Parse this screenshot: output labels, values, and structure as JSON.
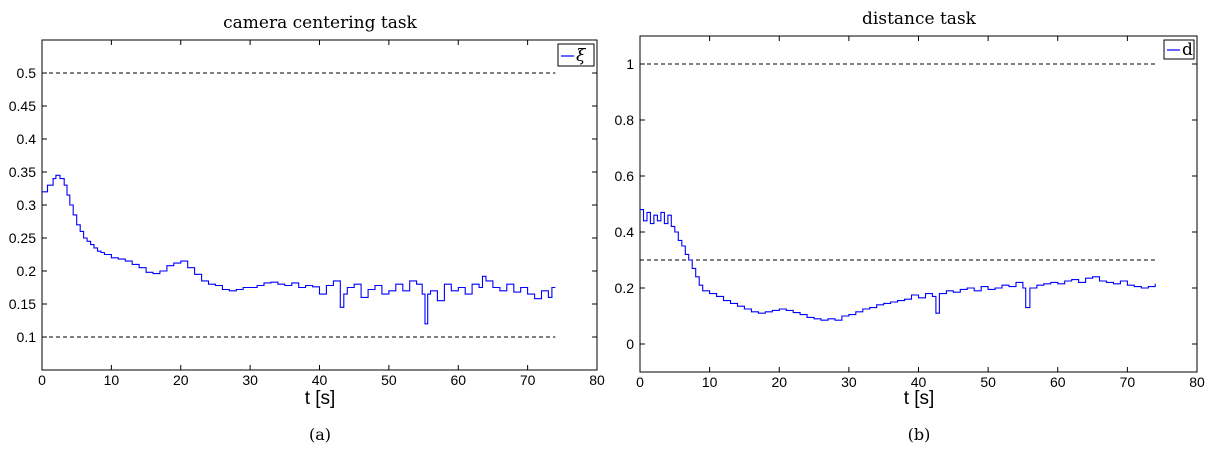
{
  "chart_data": [
    {
      "type": "line",
      "title": "camera centering task",
      "xlabel": "t [s]",
      "ylabel": "",
      "caption": "(a)",
      "xlim": [
        0,
        80
      ],
      "ylim": [
        0.05,
        0.55
      ],
      "xticks": [
        0,
        10,
        20,
        30,
        40,
        50,
        60,
        70,
        80
      ],
      "xtick_labels": [
        "0",
        "10",
        "20",
        "30",
        "40",
        "50",
        "60",
        "70",
        "80"
      ],
      "yticks": [
        0.1,
        0.15,
        0.2,
        0.25,
        0.3,
        0.35,
        0.4,
        0.45,
        0.5
      ],
      "ytick_labels": [
        "0.1",
        "0.15",
        "0.2",
        "0.25",
        "0.3",
        "0.35",
        "0.4",
        "0.45",
        "0.5"
      ],
      "step": true,
      "legend": "top-right",
      "thresholds": [
        0.5,
        0.1
      ],
      "series": [
        {
          "name": "ξ",
          "color": "#0000ff",
          "x": [
            0,
            0.8,
            1.6,
            2.0,
            2.6,
            3.2,
            3.6,
            4.0,
            4.5,
            5.0,
            5.5,
            6.0,
            6.5,
            7.0,
            7.5,
            8.0,
            8.5,
            9.0,
            10.0,
            11.0,
            12.0,
            13.0,
            14.0,
            15.0,
            16.0,
            17.0,
            18.0,
            19.0,
            20.0,
            21.0,
            22.0,
            23.0,
            24.0,
            25.0,
            26.0,
            27.0,
            28.0,
            29.0,
            30.0,
            31.0,
            32.0,
            33.0,
            34.0,
            35.0,
            36.0,
            37.0,
            38.0,
            39.0,
            40.0,
            41.0,
            42.0,
            43.0,
            43.5,
            44.0,
            45.0,
            46.0,
            47.0,
            48.0,
            49.0,
            50.0,
            51.0,
            52.0,
            53.0,
            54.0,
            54.8,
            55.2,
            55.6,
            56.0,
            57.0,
            58.0,
            59.0,
            60.0,
            61.0,
            62.0,
            63.0,
            63.5,
            64.0,
            65.0,
            66.0,
            67.0,
            68.0,
            69.0,
            70.0,
            71.0,
            72.0,
            73.0,
            73.5,
            74.0
          ],
          "y": [
            0.32,
            0.33,
            0.34,
            0.345,
            0.34,
            0.33,
            0.315,
            0.3,
            0.285,
            0.27,
            0.26,
            0.25,
            0.245,
            0.24,
            0.235,
            0.23,
            0.228,
            0.225,
            0.22,
            0.218,
            0.215,
            0.21,
            0.205,
            0.198,
            0.196,
            0.2,
            0.208,
            0.212,
            0.215,
            0.205,
            0.195,
            0.185,
            0.18,
            0.178,
            0.172,
            0.17,
            0.172,
            0.175,
            0.175,
            0.178,
            0.182,
            0.183,
            0.18,
            0.178,
            0.182,
            0.175,
            0.178,
            0.176,
            0.165,
            0.178,
            0.185,
            0.145,
            0.165,
            0.175,
            0.18,
            0.16,
            0.172,
            0.178,
            0.165,
            0.17,
            0.18,
            0.17,
            0.185,
            0.18,
            0.165,
            0.12,
            0.165,
            0.17,
            0.155,
            0.18,
            0.17,
            0.175,
            0.165,
            0.18,
            0.175,
            0.192,
            0.185,
            0.175,
            0.17,
            0.18,
            0.168,
            0.175,
            0.165,
            0.158,
            0.17,
            0.16,
            0.175,
            0.175
          ]
        }
      ]
    },
    {
      "type": "line",
      "title": "distance task",
      "xlabel": "t [s]",
      "ylabel": "",
      "caption": "(b)",
      "xlim": [
        0,
        80
      ],
      "ylim": [
        -0.1,
        1.1
      ],
      "xticks": [
        0,
        10,
        20,
        30,
        40,
        50,
        60,
        70,
        80
      ],
      "xtick_labels": [
        "0",
        "10",
        "20",
        "30",
        "40",
        "50",
        "60",
        "70",
        "80"
      ],
      "yticks": [
        0,
        0.2,
        0.4,
        0.6,
        0.8,
        1
      ],
      "ytick_labels": [
        "0",
        "0.2",
        "0.4",
        "0.6",
        "0.8",
        "1"
      ],
      "step": true,
      "legend": "top-right",
      "thresholds": [
        1.0,
        0.3
      ],
      "series": [
        {
          "name": "d",
          "color": "#0000ff",
          "x": [
            0,
            0.5,
            1.0,
            1.5,
            2.0,
            2.5,
            3.0,
            3.5,
            4.0,
            4.5,
            5.0,
            5.5,
            6.0,
            6.5,
            7.0,
            7.5,
            8.0,
            8.5,
            9.0,
            10.0,
            11.0,
            12.0,
            13.0,
            14.0,
            15.0,
            16.0,
            17.0,
            18.0,
            19.0,
            20.0,
            21.0,
            22.0,
            23.0,
            24.0,
            25.0,
            26.0,
            27.0,
            28.0,
            29.0,
            30.0,
            31.0,
            32.0,
            33.0,
            34.0,
            35.0,
            36.0,
            37.0,
            38.0,
            39.0,
            40.0,
            41.0,
            42.0,
            42.5,
            43.0,
            44.0,
            45.0,
            46.0,
            47.0,
            48.0,
            49.0,
            50.0,
            51.0,
            52.0,
            53.0,
            54.0,
            55.0,
            55.4,
            56.0,
            57.0,
            58.0,
            59.0,
            60.0,
            61.0,
            62.0,
            63.0,
            64.0,
            65.0,
            66.0,
            67.0,
            68.0,
            69.0,
            70.0,
            71.0,
            72.0,
            73.0,
            74.0
          ],
          "y": [
            0.48,
            0.44,
            0.47,
            0.43,
            0.46,
            0.44,
            0.47,
            0.43,
            0.46,
            0.42,
            0.4,
            0.37,
            0.35,
            0.32,
            0.3,
            0.27,
            0.24,
            0.21,
            0.19,
            0.18,
            0.17,
            0.155,
            0.145,
            0.135,
            0.125,
            0.115,
            0.11,
            0.115,
            0.12,
            0.125,
            0.12,
            0.112,
            0.105,
            0.095,
            0.09,
            0.085,
            0.09,
            0.085,
            0.1,
            0.105,
            0.115,
            0.125,
            0.13,
            0.14,
            0.145,
            0.15,
            0.155,
            0.16,
            0.175,
            0.165,
            0.18,
            0.17,
            0.11,
            0.18,
            0.19,
            0.185,
            0.195,
            0.2,
            0.19,
            0.205,
            0.195,
            0.2,
            0.21,
            0.205,
            0.22,
            0.2,
            0.13,
            0.2,
            0.21,
            0.215,
            0.22,
            0.215,
            0.225,
            0.23,
            0.22,
            0.235,
            0.24,
            0.225,
            0.22,
            0.215,
            0.225,
            0.21,
            0.205,
            0.2,
            0.205,
            0.215
          ]
        }
      ]
    }
  ]
}
